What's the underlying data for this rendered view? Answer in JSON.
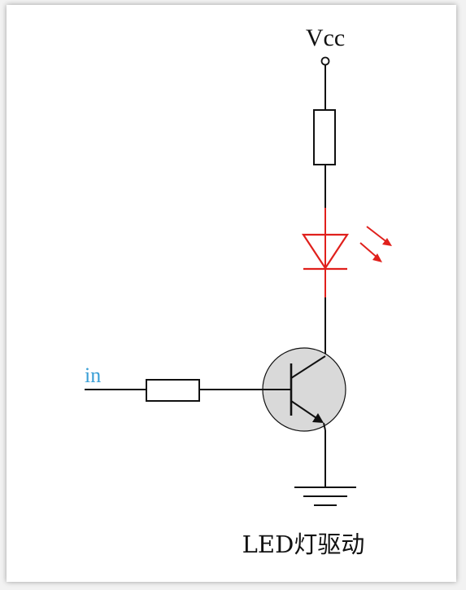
{
  "labels": {
    "vcc": "Vcc",
    "input": "in",
    "caption": "LED灯驱动"
  },
  "colors": {
    "wire": "#111111",
    "led": "#e0201c",
    "input_label": "#3a9fd6",
    "transistor_fill": "#d9d9d9"
  }
}
